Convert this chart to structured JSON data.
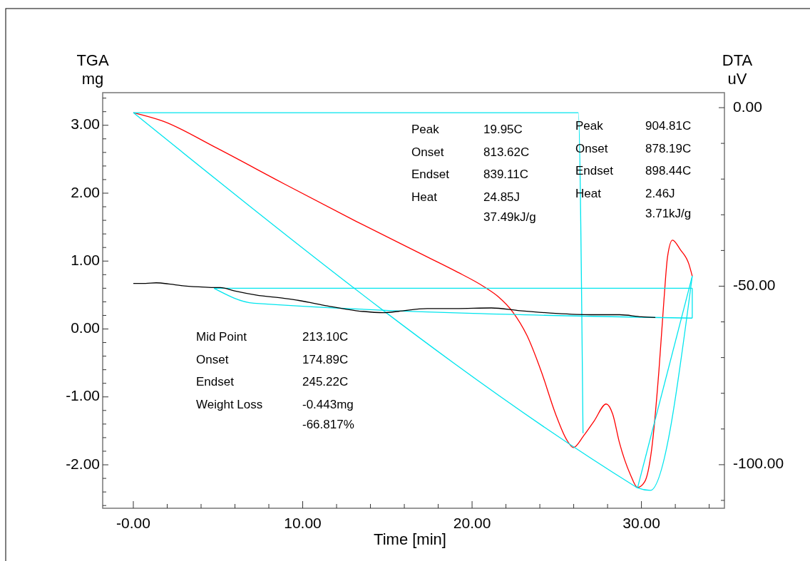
{
  "chart_data": {
    "type": "line",
    "xlabel": "Time [min]",
    "ylabel": "TGA\nmg",
    "y2label": "DTA\nuV",
    "grid": false,
    "marker": "none",
    "line_style": "solid",
    "xlim": [
      -1.81,
      34.9
    ],
    "ylim": [
      -2.64,
      3.48
    ],
    "y2lim": [
      -112.2,
      4.2
    ],
    "xticks": [
      {
        "value": 0,
        "label": "-0.00"
      },
      {
        "value": 2,
        "label": null
      },
      {
        "value": 4,
        "label": null
      },
      {
        "value": 6,
        "label": null
      },
      {
        "value": 8,
        "label": null
      },
      {
        "value": 10,
        "label": "10.00"
      },
      {
        "value": 12,
        "label": null
      },
      {
        "value": 14,
        "label": null
      },
      {
        "value": 16,
        "label": null
      },
      {
        "value": 18,
        "label": null
      },
      {
        "value": 20,
        "label": "20.00"
      },
      {
        "value": 22,
        "label": null
      },
      {
        "value": 24,
        "label": null
      },
      {
        "value": 26,
        "label": null
      },
      {
        "value": 28,
        "label": null
      },
      {
        "value": 30,
        "label": "30.00"
      },
      {
        "value": 32,
        "label": null
      },
      {
        "value": 34,
        "label": null
      }
    ],
    "yticks": [
      {
        "value": -2.6,
        "label": null
      },
      {
        "value": -2.4,
        "label": null
      },
      {
        "value": -2.2,
        "label": null
      },
      {
        "value": -2,
        "label": "-2.00"
      },
      {
        "value": -1.8,
        "label": null
      },
      {
        "value": -1.6,
        "label": null
      },
      {
        "value": -1.4,
        "label": null
      },
      {
        "value": -1.2,
        "label": null
      },
      {
        "value": -1,
        "label": "-1.00"
      },
      {
        "value": -0.8,
        "label": null
      },
      {
        "value": -0.6,
        "label": null
      },
      {
        "value": -0.4,
        "label": null
      },
      {
        "value": -0.2,
        "label": null
      },
      {
        "value": 0,
        "label": "0.00"
      },
      {
        "value": 0.2,
        "label": null
      },
      {
        "value": 0.4,
        "label": null
      },
      {
        "value": 0.6,
        "label": null
      },
      {
        "value": 0.8,
        "label": null
      },
      {
        "value": 1,
        "label": "1.00"
      },
      {
        "value": 1.2,
        "label": null
      },
      {
        "value": 1.4,
        "label": null
      },
      {
        "value": 1.6,
        "label": null
      },
      {
        "value": 1.8,
        "label": null
      },
      {
        "value": 2,
        "label": "2.00"
      },
      {
        "value": 2.2,
        "label": null
      },
      {
        "value": 2.4,
        "label": null
      },
      {
        "value": 2.6,
        "label": null
      },
      {
        "value": 2.8,
        "label": null
      },
      {
        "value": 3,
        "label": "3.00"
      },
      {
        "value": 3.2,
        "label": null
      },
      {
        "value": 3.4,
        "label": null
      }
    ],
    "y2ticks": [
      {
        "value": -110,
        "label": null
      },
      {
        "value": -100,
        "label": "-100.00"
      },
      {
        "value": -90,
        "label": null
      },
      {
        "value": -80,
        "label": null
      },
      {
        "value": -70,
        "label": null
      },
      {
        "value": -60,
        "label": null
      },
      {
        "value": -50,
        "label": "-50.00"
      },
      {
        "value": -40,
        "label": null
      },
      {
        "value": -30,
        "label": null
      },
      {
        "value": -20,
        "label": null
      },
      {
        "value": -10,
        "label": null
      },
      {
        "value": 0,
        "label": "0.00"
      }
    ],
    "series": [
      {
        "color": "#ff0000",
        "axis": "y2",
        "x": [
          0,
          1.77,
          4.72,
          8.93,
          13.14,
          17.35,
          19.03,
          20.72,
          21.56,
          22.4,
          23.24,
          24.08,
          24.93,
          25.56,
          25.98,
          26.6,
          27.2,
          27.92,
          28.3,
          28.7,
          29.35,
          29.77,
          30.19,
          30.6,
          31.03,
          31.33,
          31.54,
          31.83,
          32.3,
          32.8,
          33.0
        ],
        "values": [
          -1.4,
          -3.8,
          -10.8,
          -21.4,
          -31.8,
          -41.8,
          -45.8,
          -50.2,
          -53,
          -57.2,
          -63.8,
          -73.8,
          -85.8,
          -92.8,
          -95.2,
          -91.8,
          -87.8,
          -83,
          -85.8,
          -93.8,
          -102.8,
          -106.4,
          -104.8,
          -95.8,
          -73.8,
          -53.8,
          -41.8,
          -37.1,
          -39.8,
          -43.8,
          -47.2
        ]
      },
      {
        "color": "#00e5ee",
        "axis": "y2",
        "x": [
          0,
          26.27,
          26.55
        ],
        "values": [
          -1.4,
          -1.4,
          -91.2
        ]
      },
      {
        "color": "#00e5ee",
        "axis": "y2",
        "x": [
          0,
          29.6,
          29.77,
          30.52,
          33.0
        ],
        "values": [
          -1.4,
          -106,
          -106.5,
          -107.2,
          -47.2
        ]
      },
      {
        "color": "#00e5ee",
        "axis": "y2",
        "x": [
          29.77,
          33.0
        ],
        "values": [
          -106.5,
          -47.2
        ]
      },
      {
        "color": "#00e5ee",
        "x": [
          4.76,
          33.0
        ],
        "values": [
          0.6,
          0.6
        ]
      },
      {
        "color": "#00e5ee",
        "x": [
          33.0,
          33.0
        ],
        "values": [
          0.6,
          0.16
        ]
      },
      {
        "color": "#00e5ee",
        "x": [
          4.76,
          7.12,
          33.0
        ],
        "values": [
          0.6,
          0.38,
          0.16
        ]
      },
      {
        "color": "#000000",
        "x": [
          0,
          0.72,
          1.35,
          2.19,
          2.82,
          3.87,
          4.72,
          5.14,
          5.98,
          7.24,
          8.93,
          9.77,
          11.45,
          13.14,
          14.82,
          15.66,
          17.35,
          19.03,
          21.14,
          22.82,
          24.93,
          27.03,
          28.72,
          30,
          30.82
        ],
        "values": [
          0.67,
          0.67,
          0.68,
          0.66,
          0.64,
          0.62,
          0.61,
          0.61,
          0.56,
          0.5,
          0.45,
          0.42,
          0.34,
          0.27,
          0.24,
          0.26,
          0.3,
          0.3,
          0.31,
          0.27,
          0.23,
          0.21,
          0.21,
          0.18,
          0.17
        ]
      }
    ],
    "annotations": [
      "Peak",
      "19.95C",
      "Onset",
      "813.62C",
      "Endset",
      "839.11C",
      "Heat",
      "24.85J",
      "37.49kJ/g",
      "Peak",
      "904.81C",
      "Onset",
      "878.19C",
      "Endset",
      "898.44C",
      "Heat",
      "2.46J",
      "3.71kJ/g",
      "Mid Point",
      "213.10C",
      "Onset",
      "174.89C",
      "Endset",
      "245.22C",
      "Weight Loss",
      "-0.443mg",
      "-66.817%"
    ]
  }
}
